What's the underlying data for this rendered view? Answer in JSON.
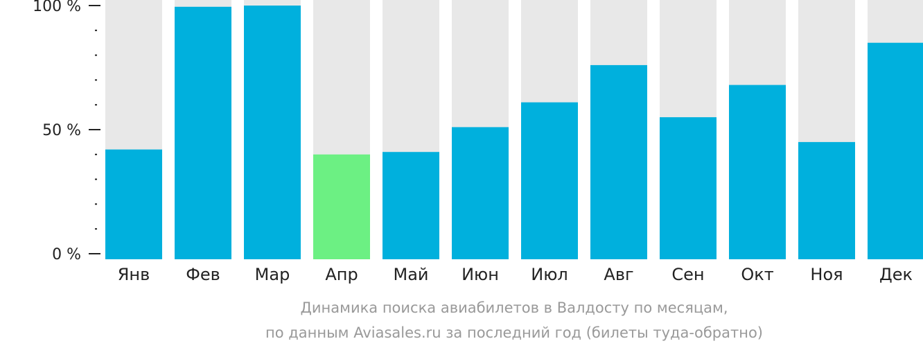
{
  "chart_data": {
    "type": "bar",
    "categories": [
      "Янв",
      "Фев",
      "Мар",
      "Апр",
      "Май",
      "Июн",
      "Июл",
      "Авг",
      "Сен",
      "Окт",
      "Ноя",
      "Дек"
    ],
    "values": [
      42,
      99.5,
      100,
      40,
      41,
      51,
      61,
      76,
      55,
      68,
      45,
      85
    ],
    "ylim": [
      0,
      100
    ],
    "yticks": [
      {
        "value": 0,
        "label": "0 %"
      },
      {
        "value": 50,
        "label": "50 %"
      },
      {
        "value": 100,
        "label": "100 %"
      }
    ],
    "minor_ticks": [
      10,
      20,
      30,
      40,
      60,
      70,
      80,
      90
    ],
    "highlight_index": 3,
    "colors": {
      "bar": "#00b0dd",
      "highlight": "#6cf083",
      "background_bar": "#e8e8e8",
      "axis": "#222222",
      "caption": "#999999"
    },
    "caption": [
      "Динамика поиска авиабилетов в Валдосту по месяцам,",
      "по данным Aviasales.ru за последний год (билеты туда-обратно)"
    ],
    "grid": false,
    "legend": "none"
  }
}
